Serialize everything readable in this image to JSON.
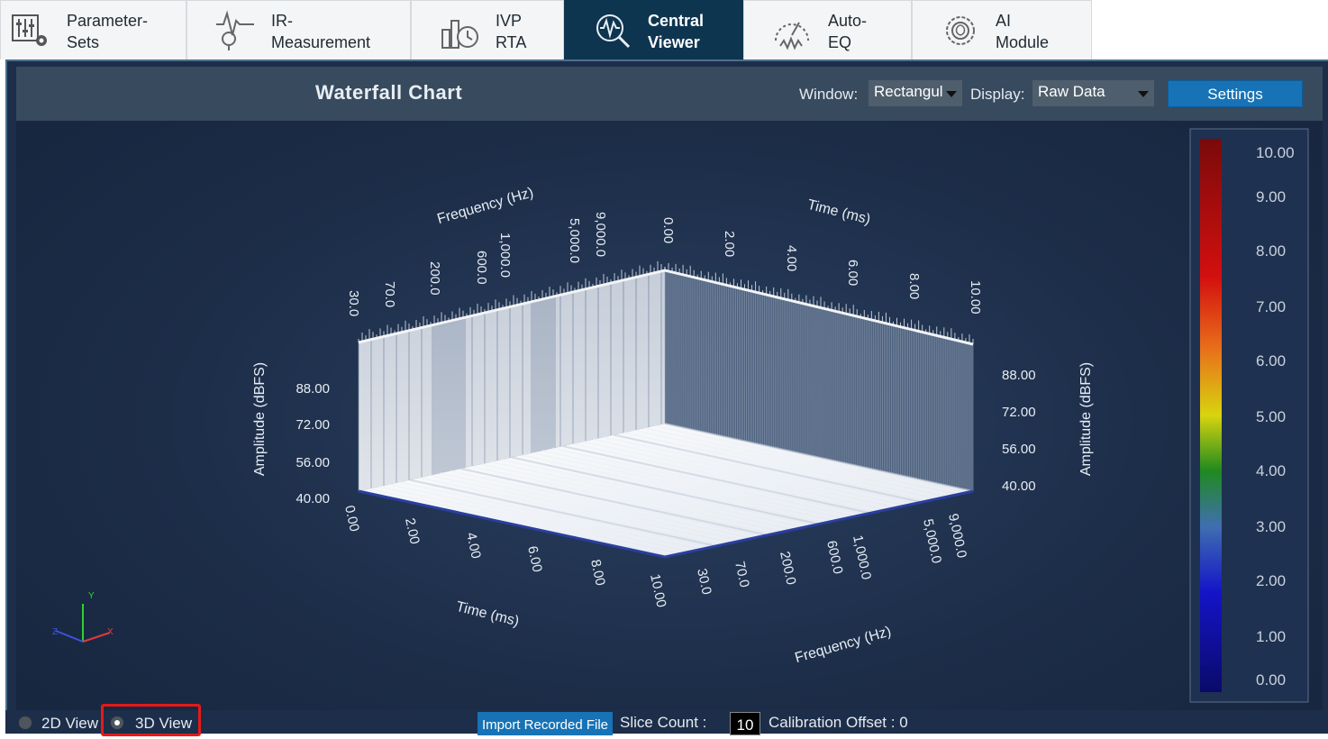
{
  "tabs": [
    {
      "line1": "Parameter-",
      "line2": "Sets",
      "icon": "parameter-sets-icon"
    },
    {
      "line1": "IR-",
      "line2": "Measurement",
      "icon": "ir-measurement-icon"
    },
    {
      "line1": "IVP",
      "line2": "RTA",
      "icon": "ivp-rta-icon"
    },
    {
      "line1": "Central",
      "line2": "Viewer",
      "icon": "central-viewer-icon",
      "active": true
    },
    {
      "line1": "Auto-",
      "line2": "EQ",
      "icon": "auto-eq-icon"
    },
    {
      "line1": "AI",
      "line2": "Module",
      "icon": "ai-module-icon"
    }
  ],
  "chart_header": {
    "title": "Waterfall Chart",
    "window_label": "Window:",
    "window_value": "Rectangul",
    "display_label": "Display:",
    "display_value": "Raw Data",
    "settings_label": "Settings"
  },
  "chart_data": {
    "type": "waterfall-3d",
    "axes": {
      "frequency": {
        "label": "Frequency (Hz)",
        "ticks": [
          "30.0",
          "70.0",
          "200.0",
          "600.0",
          "1,000.0",
          "5,000.0",
          "9,000.0"
        ]
      },
      "time": {
        "label": "Time (ms)",
        "ticks": [
          "0.00",
          "2.00",
          "4.00",
          "6.00",
          "8.00",
          "10.00"
        ]
      },
      "amplitude": {
        "label": "Amplitude (dBFS)",
        "ticks": [
          "40.00",
          "56.00",
          "72.00",
          "88.00"
        ]
      }
    },
    "colorbar": {
      "ticks": [
        "10.00",
        "9.00",
        "8.00",
        "7.00",
        "6.00",
        "5.00",
        "4.00",
        "3.00",
        "2.00",
        "1.00",
        "0.00"
      ],
      "colors": [
        "#7a0a0a",
        "#d40f0f",
        "#e8701a",
        "#d8d40e",
        "#1f8a1f",
        "#3f6fb0",
        "#1414c8",
        "#0a0a6a"
      ]
    },
    "orientation_axes": [
      "X",
      "Y",
      "Z"
    ]
  },
  "bottom": {
    "view_2d": "2D View",
    "view_3d": "3D View",
    "selected_view": "3D View",
    "import_label": "Import Recorded File",
    "slice_label": "Slice Count :",
    "slice_value": "10",
    "calibration_label": "Calibration Offset : 0"
  }
}
